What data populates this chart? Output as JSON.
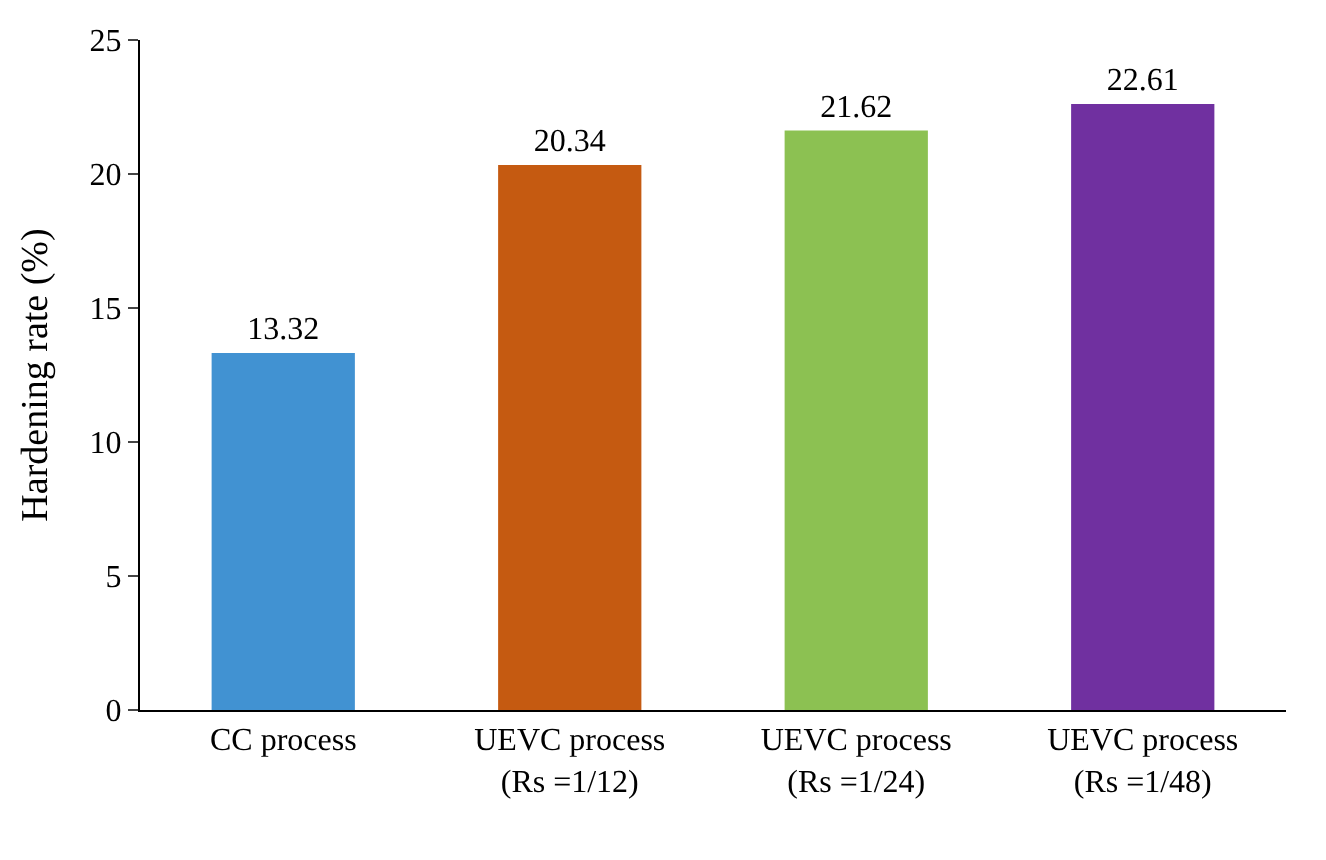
{
  "chart_data": {
    "type": "bar",
    "ylabel": "Hardening rate (%)",
    "categories": [
      "CC process",
      "UEVC process\n(Rs =1/12)",
      "UEVC process\n(Rs =1/24)",
      "UEVC process\n(Rs =1/48)"
    ],
    "values": [
      13.32,
      20.34,
      21.62,
      22.61
    ],
    "colors": [
      "#4192d2",
      "#c55a11",
      "#8cc152",
      "#7030a0"
    ],
    "ylim": [
      0,
      25
    ],
    "yticks": [
      0,
      5,
      10,
      15,
      20,
      25
    ],
    "data_labels": true
  }
}
